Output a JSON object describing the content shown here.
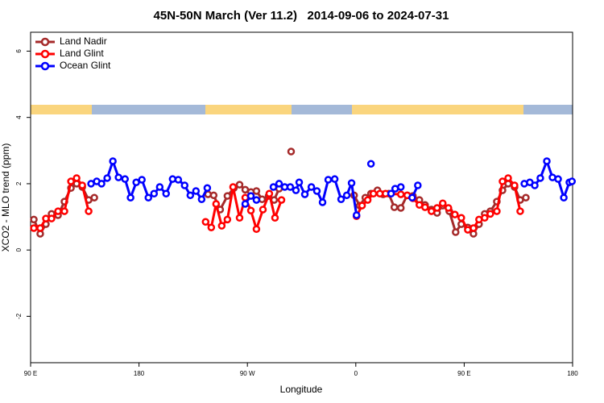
{
  "chart_data": {
    "type": "line",
    "title": "45N-50N March (Ver 11.2)   2014-09-06 to 2024-07-31",
    "x_label": "Longitude",
    "y_label": "XCO2 - MLO trend (ppm)",
    "xlim": [
      90,
      540
    ],
    "ylim": [
      -3.4,
      6.57
    ],
    "xticks": [
      {
        "value": 90,
        "label": "90 E"
      },
      180,
      {
        "value": 270,
        "label": "90 W"
      },
      {
        "value": 360,
        "label": "0"
      },
      {
        "value": 450,
        "label": "90 E"
      },
      {
        "value": 540,
        "label": "180"
      }
    ],
    "yticks": [
      -2,
      0,
      2,
      4,
      6
    ],
    "legend": "top-left",
    "series": [
      {
        "name": "Land Nadir",
        "color": "#a52a2a",
        "x": [
          92.7,
          98.0,
          102.7,
          107.4,
          112.8,
          118.1,
          123.5,
          128.2,
          132.9,
          138.2,
          142.9,
          190,
          237.3,
          242.0,
          247.4,
          253.4,
          258.8,
          263.5,
          268.2,
          272.9,
          277.5,
          282.2,
          287.6,
          292.2,
          296.3,
          301,
          306.3,
          330,
          358.6,
          363.2,
          367.9,
          372.6,
          378.0,
          382.7,
          387.3,
          392.0,
          397.4,
          402.7,
          407.4,
          412.8,
          417.5,
          422.8,
          427.5,
          432.2,
          437.6,
          442.9,
          447.6,
          453.0,
          457.7,
          462.3,
          467.0,
          471.7,
          477.1,
          481.8,
          486.5,
          491.8,
          496.5,
          501.2
        ],
        "values": [
          0.92,
          0.49,
          0.78,
          1.09,
          1.05,
          1.46,
          1.87,
          2.0,
          1.9,
          1.51,
          1.58,
          null,
          1.68,
          1.65,
          1.22,
          1.63,
          1.87,
          1.97,
          1.82,
          1.75,
          1.78,
          1.53,
          1.63,
          1.51,
          1.85,
          null,
          2.97,
          null,
          1.65,
          1.34,
          1.58,
          1.7,
          1.8,
          1.68,
          1.7,
          1.29,
          1.27,
          1.65,
          1.63,
          1.51,
          1.36,
          1.22,
          1.12,
          1.34,
          1.17,
          0.54,
          0.78,
          0.68,
          0.49,
          0.78,
          1.09,
          1.17,
          1.46,
          1.8,
          2.0,
          1.9,
          1.51,
          1.58
        ]
      },
      {
        "name": "Land Glint",
        "color": "#ff0000",
        "x": [
          92.7,
          98.0,
          102.7,
          107.4,
          112.8,
          118.1,
          123.5,
          128.2,
          132.9,
          138.2,
          190,
          235.3,
          240.0,
          244.0,
          248.7,
          253.4,
          258.1,
          263.5,
          268.2,
          272.9,
          277.5,
          282.9,
          288.2,
          292.9,
          298.3,
          330,
          360.6,
          365.2,
          369.9,
          374.6,
          380.0,
          384.7,
          397.4,
          402.7,
          407.4,
          412.8,
          417.5,
          422.8,
          427.5,
          432.2,
          436.9,
          442.3,
          447.6,
          453.0,
          457.7,
          462.3,
          467.0,
          471.7,
          477.1,
          481.8,
          486.5,
          491.8,
          496.5
        ],
        "values": [
          0.66,
          0.66,
          0.95,
          0.95,
          1.17,
          1.17,
          2.07,
          2.17,
          1.95,
          1.17,
          null,
          0.85,
          0.68,
          1.39,
          0.73,
          0.92,
          1.9,
          0.97,
          1.58,
          1.19,
          0.63,
          1.22,
          1.7,
          0.97,
          1.51,
          null,
          1.02,
          1.34,
          1.51,
          1.7,
          1.7,
          1.7,
          1.68,
          1.65,
          1.56,
          1.36,
          1.29,
          1.17,
          1.27,
          1.41,
          1.27,
          1.07,
          0.97,
          0.61,
          0.66,
          0.92,
          0.97,
          1.09,
          1.17,
          2.07,
          2.17,
          1.95,
          1.17
        ]
      },
      {
        "name": "Ocean Glint",
        "color": "#0000ff",
        "x": [
          140.2,
          144.9,
          148.9,
          153.6,
          158.3,
          163.0,
          168.4,
          173.0,
          177.7,
          182.4,
          187.8,
          192.5,
          197.2,
          202.5,
          207.9,
          212.6,
          217.9,
          222.6,
          227.3,
          232.0,
          236.7,
          250,
          268.2,
          272.9,
          277.5,
          285,
          291.6,
          296.3,
          301.0,
          305.6,
          310.3,
          313.0,
          317.7,
          323.1,
          327.7,
          332.4,
          337.1,
          342.5,
          347.8,
          352.5,
          356.5,
          360.6,
          366,
          372.6,
          380,
          389.3,
          392.7,
          397.4,
          402,
          406.8,
          411.5,
          450,
          499.9,
          504.5,
          508.6,
          513.2,
          518.6,
          523.3,
          528.0,
          532.7,
          537.3,
          539.5
        ],
        "values": [
          2.0,
          2.07,
          2.0,
          2.17,
          2.68,
          2.19,
          2.14,
          1.58,
          2.04,
          2.12,
          1.58,
          1.7,
          1.9,
          1.7,
          2.14,
          2.12,
          1.95,
          1.65,
          1.78,
          1.53,
          1.87,
          null,
          1.39,
          1.63,
          1.51,
          null,
          1.9,
          2.0,
          1.9,
          1.9,
          1.8,
          2.04,
          1.68,
          1.9,
          1.78,
          1.44,
          2.12,
          2.14,
          1.53,
          1.65,
          2.02,
          1.05,
          null,
          2.6,
          null,
          1.7,
          1.85,
          1.9,
          null,
          1.58,
          1.95,
          null,
          2.0,
          2.04,
          1.95,
          2.17,
          2.68,
          2.19,
          2.14,
          1.58,
          2.04,
          2.07
        ]
      }
    ]
  }
}
